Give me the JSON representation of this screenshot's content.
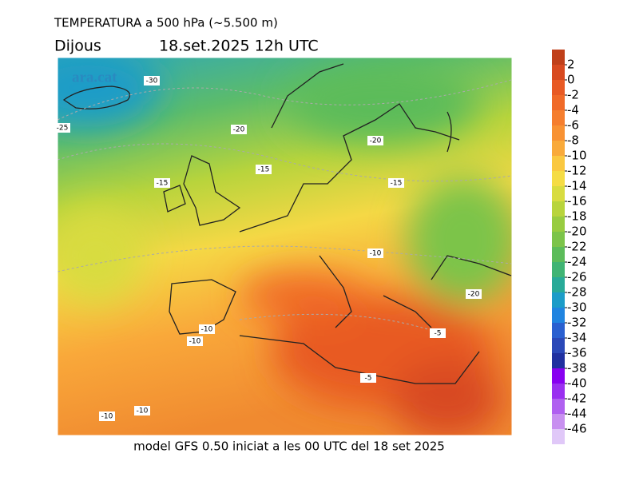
{
  "header": {
    "title": "TEMPERATURA a 500 hPa (~5.500 m)",
    "day": "Dijous",
    "date": "18.set.2025 12h UTC"
  },
  "watermark": "ara.cat",
  "footer": "model GFS 0.50 iniciat a les 00 UTC del 18 set 2025",
  "contour_labels": [
    -30,
    -25,
    -20,
    -20,
    -15,
    -15,
    -15,
    -10,
    -20,
    -10,
    -10,
    -5,
    -5,
    -10,
    -10
  ],
  "legend": {
    "values": [
      2,
      0,
      -2,
      -4,
      -6,
      -8,
      -10,
      -12,
      -14,
      -16,
      -18,
      -20,
      -22,
      -24,
      -26,
      -28,
      -30,
      -32,
      -34,
      -36,
      -38,
      -40,
      -42,
      -44,
      -46
    ],
    "colors": [
      "#c0401a",
      "#d84a20",
      "#e85a24",
      "#f06a28",
      "#f57e2e",
      "#f89233",
      "#f9aa3a",
      "#fac840",
      "#f5dc45",
      "#d8dc40",
      "#b8d43c",
      "#98cc40",
      "#7cc44a",
      "#5cbc5a",
      "#40b474",
      "#28aa98",
      "#1c9cc8",
      "#2084e0",
      "#2a60d0",
      "#2a48b8",
      "#2030a0",
      "#8800f0",
      "#9a30f0",
      "#b060f0",
      "#c890f0",
      "#e0c8f8"
    ]
  }
}
